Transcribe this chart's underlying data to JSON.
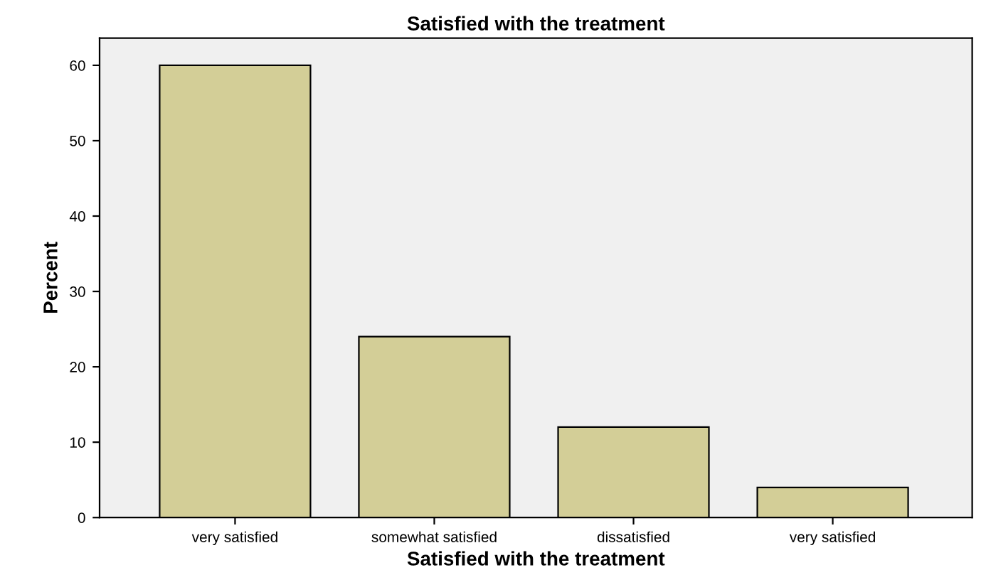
{
  "chart_data": {
    "type": "bar",
    "title": "Satisfied with the treatment",
    "xlabel": "Satisfied with the treatment",
    "ylabel": "Percent",
    "categories": [
      "very satisfied",
      "somewhat satisfied",
      "dissatisfied",
      "very satisfied"
    ],
    "values": [
      60,
      24,
      12,
      4
    ],
    "color": "#d3ce97",
    "ylim": [
      0,
      63.6
    ],
    "yticks": [
      0,
      10,
      20,
      30,
      40,
      50,
      60
    ],
    "grid": false,
    "legend": false
  }
}
